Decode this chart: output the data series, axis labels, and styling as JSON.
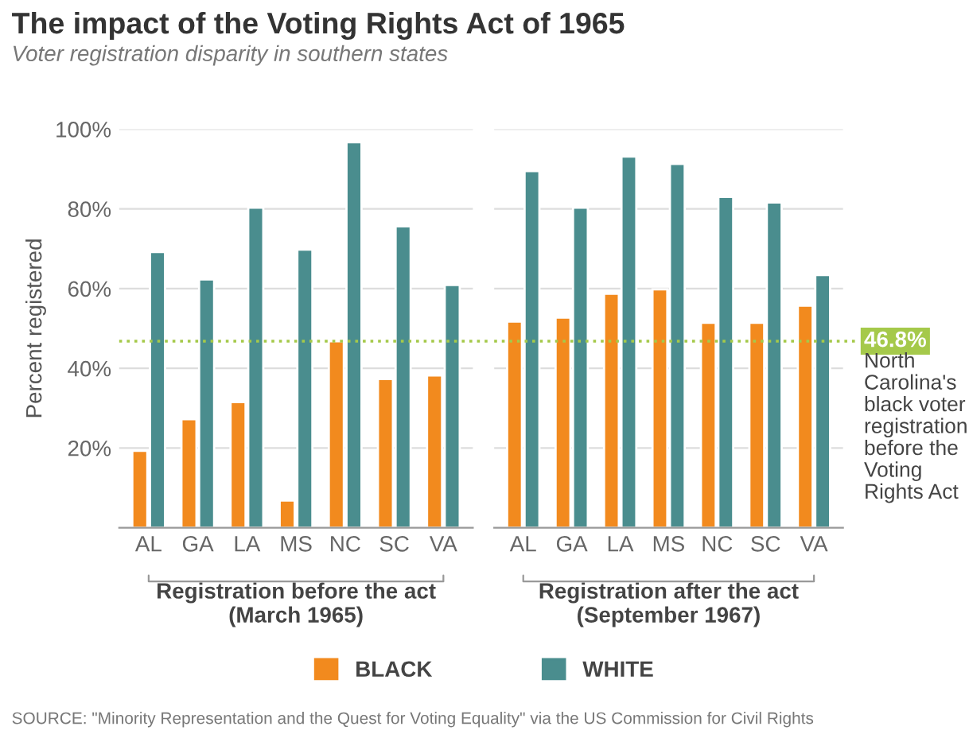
{
  "chart_data": [
    {
      "type": "bar",
      "title": "The impact of the Voting Rights Act of 1965",
      "subtitle": "Voter registration disparity in southern states",
      "ylabel": "Percent registered",
      "xlabel": "Registration before the act\n(March 1965)",
      "categories": [
        "AL",
        "GA",
        "LA",
        "MS",
        "NC",
        "SC",
        "VA"
      ],
      "series": [
        {
          "name": "BLACK",
          "color": "#f28a1e",
          "values": [
            19.3,
            27.2,
            31.5,
            6.8,
            46.8,
            37.3,
            38.2
          ]
        },
        {
          "name": "WHITE",
          "color": "#4a8d8e",
          "values": [
            69.2,
            62.3,
            80.3,
            69.8,
            96.7,
            75.6,
            60.9
          ]
        }
      ],
      "ylim": [
        0,
        100
      ],
      "yticks": [
        {
          "value": 20,
          "label": "20%"
        },
        {
          "value": 40,
          "label": "40%"
        },
        {
          "value": 60,
          "label": "60%"
        },
        {
          "value": 80,
          "label": "80%"
        },
        {
          "value": 100,
          "label": "100%"
        }
      ],
      "grid": "y",
      "legend": "bottom",
      "ref_lines": [
        {
          "axis": "y",
          "value": 46.8,
          "color": "#a5c94a",
          "line_style": "dotted"
        }
      ]
    },
    {
      "type": "bar",
      "xlabel": "Registration after the act\n(September 1967)",
      "categories": [
        "AL",
        "GA",
        "LA",
        "MS",
        "NC",
        "SC",
        "VA"
      ],
      "series": [
        {
          "color": "#f28a1e",
          "values": [
            51.7,
            52.7,
            58.7,
            59.8,
            51.4,
            51.4,
            55.7
          ]
        },
        {
          "color": "#4a8d8e",
          "values": [
            89.5,
            80.3,
            93.1,
            91.3,
            83.0,
            81.6,
            63.4
          ]
        }
      ],
      "ylim": [
        0,
        100
      ],
      "yticks": [
        {
          "value": 20,
          "label": null
        },
        {
          "value": 40,
          "label": null
        },
        {
          "value": 60,
          "label": null
        },
        {
          "value": 80,
          "label": null
        },
        {
          "value": 100,
          "label": null
        }
      ],
      "grid": "y",
      "tick_labels": "x",
      "ref_lines": [
        {
          "axis": "y",
          "value": 46.8,
          "label": "46.8%",
          "color": "#a5c94a",
          "line_style": "dotted"
        }
      ],
      "annotations": [
        "North\nCarolina's\nblack voter\nregistration\nbefore the\nVoting\nRights Act",
        "SOURCE: \"Minority Representation and the Quest for Voting Equality\" via the US Commission for Civil Rights"
      ]
    }
  ]
}
